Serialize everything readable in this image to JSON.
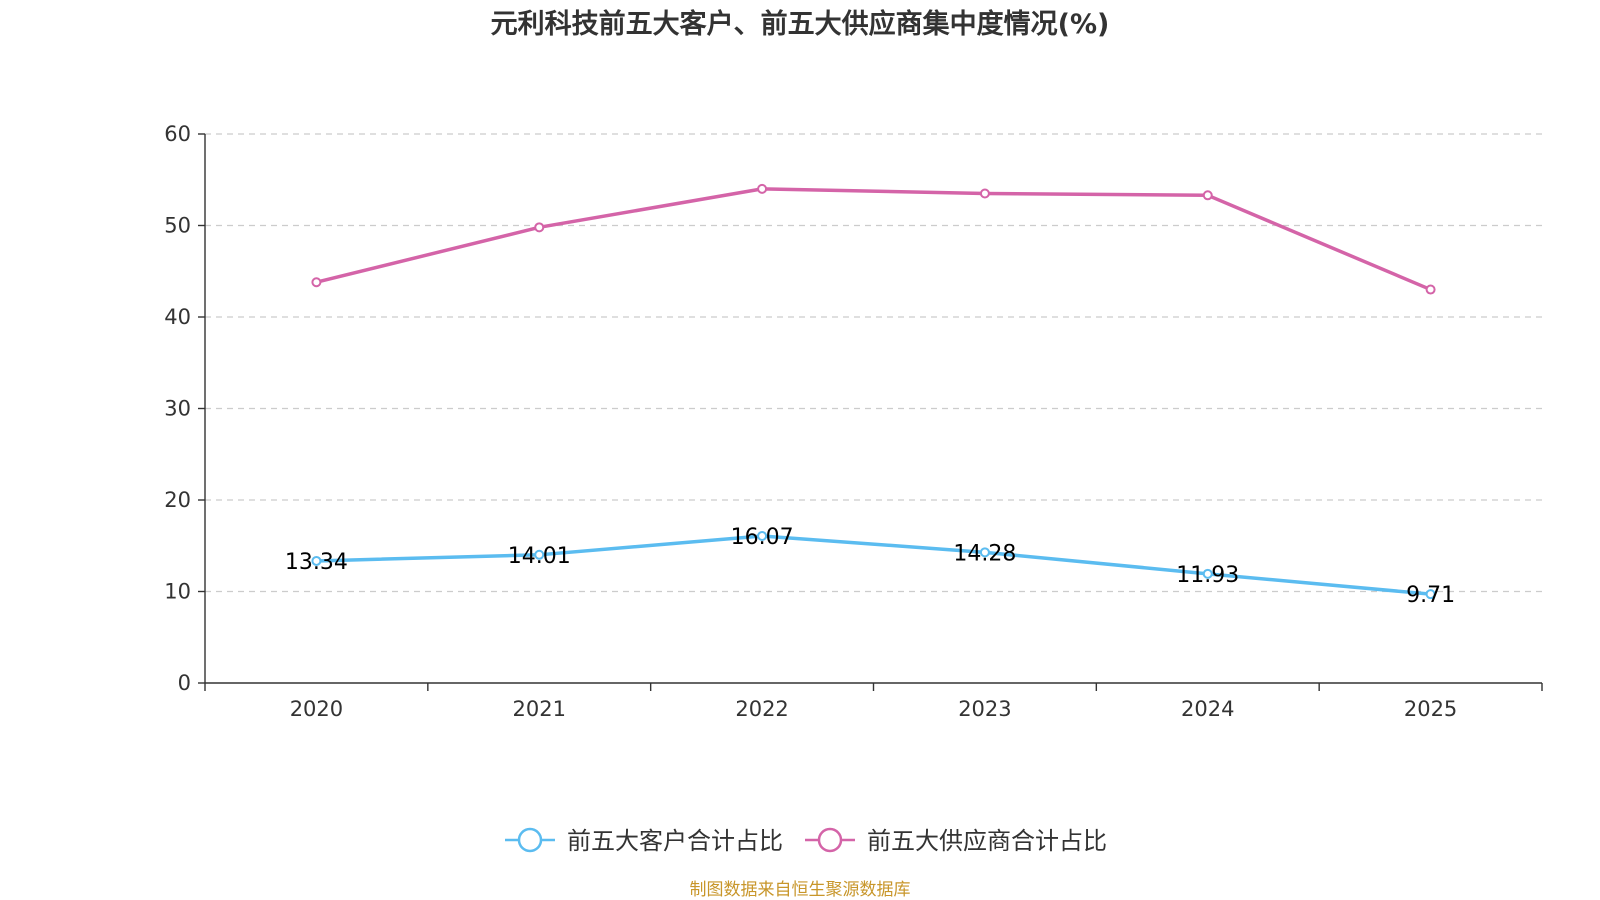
{
  "chart_data": {
    "type": "line",
    "title": "元利科技前五大客户、前五大供应商集中度情况(%)",
    "categories": [
      "2020",
      "2021",
      "2022",
      "2023",
      "2024",
      "2025"
    ],
    "ylim": [
      0,
      60
    ],
    "yticks": [
      0,
      10,
      20,
      30,
      40,
      50,
      60
    ],
    "grid": true,
    "legend_position": "bottom",
    "series": [
      {
        "name": "前五大客户合计占比",
        "values": [
          13.34,
          14.01,
          16.07,
          14.28,
          11.93,
          9.71
        ],
        "labels": [
          "13.34",
          "14.01",
          "16.07",
          "14.28",
          "11.93",
          "9.71"
        ],
        "color": "#5bbcf0",
        "show_labels": true
      },
      {
        "name": "前五大供应商合计占比",
        "values": [
          43.8,
          49.8,
          54.0,
          53.5,
          53.3,
          43.0
        ],
        "color": "#d464a8",
        "show_labels": false
      }
    ]
  },
  "source_text": "制图数据来自恒生聚源数据库",
  "colors": {
    "axis": "#333333",
    "grid": "#cccccc",
    "source": "#c8962a"
  }
}
